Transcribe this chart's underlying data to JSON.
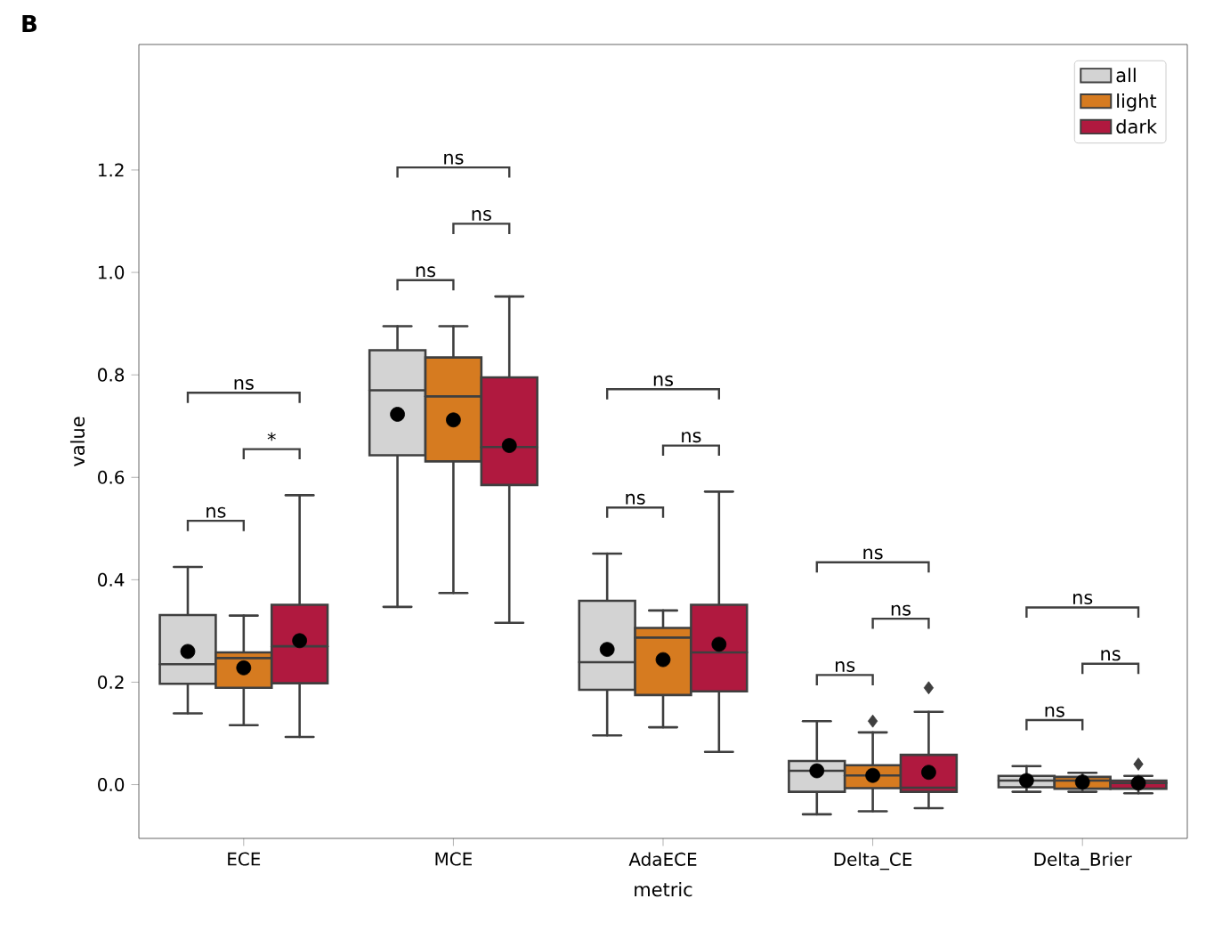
{
  "chart_data": {
    "type": "box",
    "title": "B",
    "xlabel": "metric",
    "ylabel": "value",
    "categories": [
      "ECE",
      "MCE",
      "AdaECE",
      "Delta_CE",
      "Delta_Brier"
    ],
    "series": [
      {
        "name": "all",
        "color": "#d3d3d3",
        "boxes": [
          {
            "low": 0.139,
            "q1": 0.197,
            "median": 0.235,
            "q3": 0.331,
            "high": 0.425,
            "mean": 0.26
          },
          {
            "low": 0.347,
            "q1": 0.643,
            "median": 0.77,
            "q3": 0.848,
            "high": 0.895,
            "mean": 0.723
          },
          {
            "low": 0.096,
            "q1": 0.185,
            "median": 0.239,
            "q3": 0.359,
            "high": 0.451,
            "mean": 0.264
          },
          {
            "low": -0.058,
            "q1": -0.014,
            "median": 0.027,
            "q3": 0.046,
            "high": 0.124,
            "mean": 0.027
          },
          {
            "low": -0.014,
            "q1": -0.005,
            "median": 0.008,
            "q3": 0.017,
            "high": 0.036,
            "mean": 0.008
          }
        ]
      },
      {
        "name": "light",
        "color": "#d67b20",
        "boxes": [
          {
            "low": 0.116,
            "q1": 0.189,
            "median": 0.247,
            "q3": 0.258,
            "high": 0.33,
            "mean": 0.228
          },
          {
            "low": 0.374,
            "q1": 0.631,
            "median": 0.758,
            "q3": 0.834,
            "high": 0.895,
            "mean": 0.712
          },
          {
            "low": 0.112,
            "q1": 0.175,
            "median": 0.287,
            "q3": 0.306,
            "high": 0.34,
            "mean": 0.244
          },
          {
            "low": -0.052,
            "q1": -0.007,
            "median": 0.018,
            "q3": 0.038,
            "high": 0.102,
            "mean": 0.018,
            "outliers": [
              0.124
            ]
          },
          {
            "low": -0.014,
            "q1": -0.008,
            "median": 0.008,
            "q3": 0.015,
            "high": 0.023,
            "mean": 0.005
          }
        ]
      },
      {
        "name": "dark",
        "color": "#b0193f",
        "boxes": [
          {
            "low": 0.093,
            "q1": 0.198,
            "median": 0.27,
            "q3": 0.351,
            "high": 0.565,
            "mean": 0.281
          },
          {
            "low": 0.316,
            "q1": 0.585,
            "median": 0.659,
            "q3": 0.795,
            "high": 0.953,
            "mean": 0.662
          },
          {
            "low": 0.064,
            "q1": 0.182,
            "median": 0.258,
            "q3": 0.351,
            "high": 0.572,
            "mean": 0.274
          },
          {
            "low": -0.046,
            "q1": -0.014,
            "median": -0.006,
            "q3": 0.058,
            "high": 0.142,
            "mean": 0.024,
            "outliers": [
              0.189
            ]
          },
          {
            "low": -0.017,
            "q1": -0.008,
            "median": 0.003,
            "q3": 0.008,
            "high": 0.017,
            "mean": 0.003,
            "outliers": [
              0.04
            ]
          }
        ]
      }
    ],
    "ylim": [
      -0.105,
      1.445
    ],
    "yticks": [
      {
        "value": 0,
        "label": "0.0"
      },
      {
        "value": 0.2,
        "label": "0.2"
      },
      {
        "value": 0.4,
        "label": "0.4"
      },
      {
        "value": 0.6,
        "label": "0.6"
      },
      {
        "value": 0.8,
        "label": "0.8"
      },
      {
        "value": 1.0,
        "label": "1.0"
      },
      {
        "value": 1.2,
        "label": "1.2"
      }
    ],
    "legend": "top right",
    "annotations": [
      "ns",
      "*",
      "ns",
      "ns",
      "ns",
      "ns",
      "ns",
      "ns",
      "ns",
      "ns",
      "ns",
      "ns",
      "ns",
      "ns",
      "ns"
    ]
  }
}
